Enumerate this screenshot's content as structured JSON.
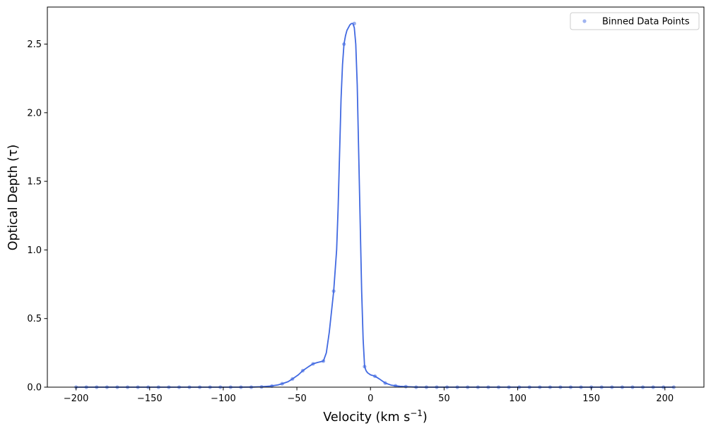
{
  "chart_data": {
    "type": "scatter",
    "xlabel": "Velocity (km s",
    "xlabel_sup": "−1",
    "xlabel_end": ")",
    "ylabel": "Optical Depth (τ)",
    "xlim": [
      -219.5,
      226.5
    ],
    "ylim": [
      0,
      2.77
    ],
    "xticks": [
      -200,
      -150,
      -100,
      -50,
      0,
      50,
      100,
      150,
      200
    ],
    "xtick_labels": [
      "−200",
      "−150",
      "−100",
      "−50",
      "0",
      "50",
      "100",
      "150",
      "200"
    ],
    "yticks": [
      0.0,
      0.5,
      1.0,
      1.5,
      2.0,
      2.5
    ],
    "ytick_labels": [
      "0.0",
      "0.5",
      "1.0",
      "1.5",
      "2.0",
      "2.5"
    ],
    "grid": false,
    "legend": {
      "position": "top-right",
      "entries": [
        "Binned Data Points"
      ]
    },
    "colors": {
      "line": "#4169e1",
      "points": "#4169e1"
    },
    "series": [
      {
        "name": "Binned Data Points",
        "kind": "scatter",
        "x": [
          -200,
          -193,
          -186,
          -179,
          -172,
          -165,
          -158,
          -151,
          -144,
          -137,
          -130,
          -123,
          -116,
          -109,
          -102,
          -95,
          -88,
          -81,
          -74,
          -67,
          -60,
          -53,
          -46,
          -39,
          -32,
          -25,
          -18,
          -11,
          -4,
          3,
          10,
          17,
          24,
          31,
          38,
          45,
          52,
          59,
          66,
          73,
          80,
          87,
          94,
          101,
          108,
          115,
          122,
          129,
          136,
          143,
          150,
          157,
          164,
          171,
          178,
          185,
          192,
          199,
          206
        ],
        "y": [
          0,
          0,
          0,
          0,
          0,
          0,
          0,
          0,
          0,
          0,
          0,
          0,
          0,
          0,
          0,
          0,
          0,
          0,
          0.002,
          0.008,
          0.025,
          0.06,
          0.12,
          0.17,
          0.19,
          0.7,
          2.5,
          2.65,
          0.15,
          0.08,
          0.03,
          0.01,
          0.004,
          0,
          0,
          0,
          0,
          0,
          0,
          0,
          0,
          0,
          0,
          0,
          0,
          0,
          0,
          0,
          0,
          0,
          0,
          0,
          0,
          0,
          0,
          0,
          0,
          0,
          0
        ]
      }
    ],
    "curve": {
      "x": [
        -200,
        -90,
        -80,
        -74,
        -68,
        -63,
        -60,
        -56,
        -53,
        -49,
        -46,
        -42,
        -39,
        -36,
        -32,
        -30,
        -28,
        -27,
        -25,
        -23,
        -22,
        -21,
        -20,
        -19,
        -18,
        -17,
        -16,
        -15,
        -14,
        -13,
        -12,
        -11,
        -10,
        -9,
        -8,
        -7,
        -6,
        -5,
        -4,
        -3,
        -2,
        0,
        3,
        6,
        10,
        14,
        17,
        20,
        24,
        30,
        38,
        50,
        206
      ],
      "y": [
        0,
        0,
        0.001,
        0.003,
        0.008,
        0.016,
        0.025,
        0.04,
        0.06,
        0.09,
        0.12,
        0.15,
        0.17,
        0.18,
        0.19,
        0.25,
        0.4,
        0.5,
        0.7,
        1.0,
        1.3,
        1.7,
        2.1,
        2.35,
        2.5,
        2.56,
        2.6,
        2.62,
        2.64,
        2.65,
        2.65,
        2.62,
        2.5,
        2.2,
        1.7,
        1.2,
        0.7,
        0.35,
        0.15,
        0.12,
        0.105,
        0.09,
        0.08,
        0.06,
        0.03,
        0.015,
        0.01,
        0.006,
        0.004,
        0.001,
        0,
        0,
        0
      ]
    }
  }
}
